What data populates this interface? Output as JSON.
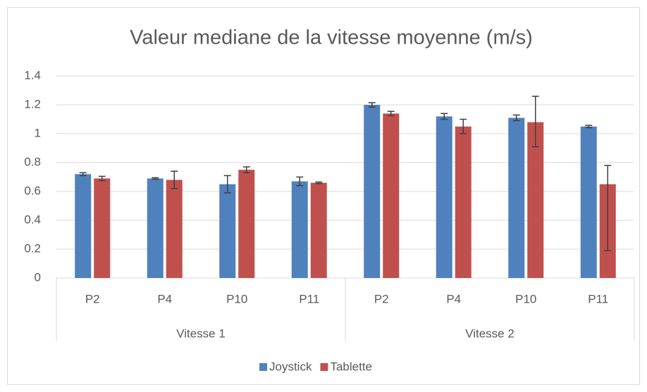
{
  "chart_data": {
    "type": "bar",
    "title": "Valeur mediane de la vitesse moyenne (m/s)",
    "categories": [
      "P2",
      "P4",
      "P10",
      "P11",
      "P2",
      "P4",
      "P10",
      "P11"
    ],
    "groups": [
      "Vitesse 1",
      "Vitesse 2"
    ],
    "series": [
      {
        "name": "Joystick",
        "color": "#4f81bd",
        "values": [
          0.72,
          0.69,
          0.65,
          0.67,
          1.2,
          1.12,
          1.11,
          1.05
        ],
        "errors_minus": [
          0.01,
          0.005,
          0.06,
          0.03,
          0.015,
          0.02,
          0.02,
          0.008
        ],
        "errors_plus": [
          0.01,
          0.005,
          0.06,
          0.03,
          0.015,
          0.02,
          0.02,
          0.008
        ]
      },
      {
        "name": "Tablette",
        "color": "#c0504d",
        "values": [
          0.69,
          0.68,
          0.75,
          0.66,
          1.14,
          1.05,
          1.08,
          0.65
        ],
        "errors_minus": [
          0.015,
          0.06,
          0.02,
          0.005,
          0.015,
          0.05,
          0.17,
          0.46
        ],
        "errors_plus": [
          0.015,
          0.06,
          0.02,
          0.005,
          0.015,
          0.05,
          0.18,
          0.13
        ]
      }
    ],
    "ylim": [
      0,
      1.4
    ],
    "yticks": [
      0,
      0.2,
      0.4,
      0.6,
      0.8,
      1,
      1.2,
      1.4
    ],
    "grid": true,
    "legend": "bottom"
  }
}
